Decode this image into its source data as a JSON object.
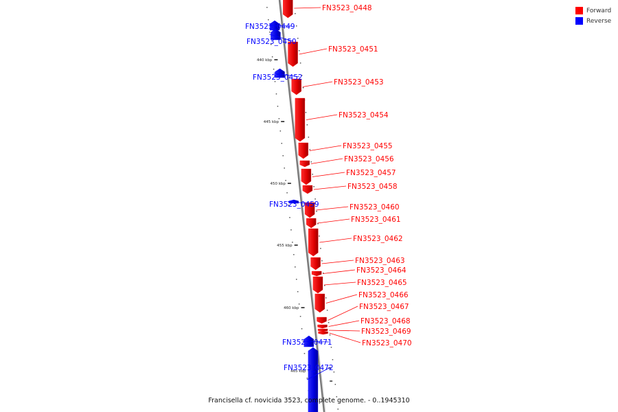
{
  "legend": {
    "forward_label": "Forward",
    "reverse_label": "Reverse",
    "forward_color": "#ff0000",
    "reverse_color": "#0000ff"
  },
  "caption": "Francisella cf. novicida 3523, complete genome. - 0..1945310",
  "ruler": [
    "440 kbp",
    "445 kbp",
    "450 kbp",
    "455 kbp",
    "460 kbp",
    "465 kbp"
  ],
  "genes": [
    {
      "name": "FN3523_0448",
      "strand": "forward"
    },
    {
      "name": "FN3523_0449",
      "strand": "reverse"
    },
    {
      "name": "FN3523_0450",
      "strand": "reverse"
    },
    {
      "name": "FN3523_0451",
      "strand": "forward"
    },
    {
      "name": "FN3523_0452",
      "strand": "reverse"
    },
    {
      "name": "FN3523_0453",
      "strand": "forward"
    },
    {
      "name": "FN3523_0454",
      "strand": "forward"
    },
    {
      "name": "FN3523_0455",
      "strand": "forward"
    },
    {
      "name": "FN3523_0456",
      "strand": "forward"
    },
    {
      "name": "FN3523_0457",
      "strand": "forward"
    },
    {
      "name": "FN3523_0458",
      "strand": "forward"
    },
    {
      "name": "FN3523_0459",
      "strand": "reverse"
    },
    {
      "name": "FN3523_0460",
      "strand": "forward"
    },
    {
      "name": "FN3523_0461",
      "strand": "forward"
    },
    {
      "name": "FN3523_0462",
      "strand": "forward"
    },
    {
      "name": "FN3523_0463",
      "strand": "forward"
    },
    {
      "name": "FN3523_0464",
      "strand": "forward"
    },
    {
      "name": "FN3523_0465",
      "strand": "forward"
    },
    {
      "name": "FN3523_0466",
      "strand": "forward"
    },
    {
      "name": "FN3523_0467",
      "strand": "forward"
    },
    {
      "name": "FN3523_0468",
      "strand": "forward"
    },
    {
      "name": "FN3523_0469",
      "strand": "forward"
    },
    {
      "name": "FN3523_0470",
      "strand": "forward"
    },
    {
      "name": "FN3523_0471",
      "strand": "reverse"
    },
    {
      "name": "FN3523_0472",
      "strand": "reverse"
    }
  ]
}
